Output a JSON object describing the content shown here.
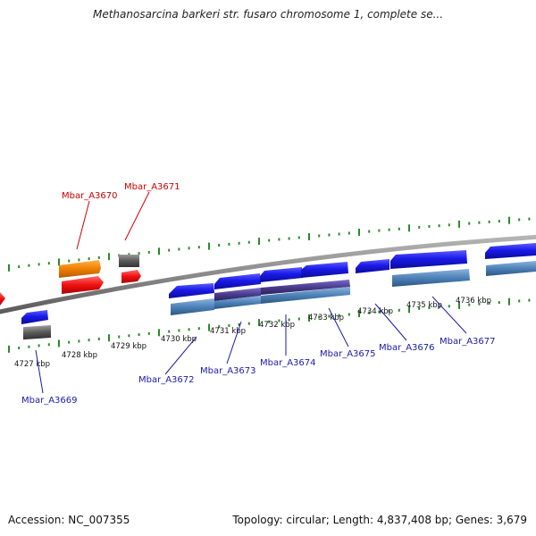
{
  "title": "Methanosarcina barkeri str. fusaro chromosome 1, complete se...",
  "footer": {
    "accession": "Accession: NC_007355",
    "summary": "Topology: circular; Length: 4,837,408 bp; Genes: 3,679"
  },
  "colors": {
    "backbone": "#7a7a7a",
    "tick": "#2a8a2a",
    "forward_gene": "#ee7700",
    "forward_cds": "#ff1111",
    "reverse_gene": "#1414e0",
    "reverse_cds": "#4d82b8",
    "pseudo": "#555555",
    "overlap": "#4a3c8c",
    "label_forward": "#cc0000",
    "label_reverse": "#1a1aa8"
  },
  "kbp_labels": [
    "4727 kbp",
    "4728 kbp",
    "4729 kbp",
    "4730 kbp",
    "4731 kbp",
    "4732 kbp",
    "4733 kbp",
    "4734 kbp",
    "4735 kbp",
    "4736 kbp"
  ],
  "gene_labels": {
    "forward": [
      "Mbar_A3670",
      "Mbar_A3671"
    ],
    "reverse": [
      "Mbar_A3669",
      "Mbar_A3672",
      "Mbar_A3673",
      "Mbar_A3674",
      "Mbar_A3675",
      "Mbar_A3676",
      "Mbar_A3677"
    ]
  }
}
